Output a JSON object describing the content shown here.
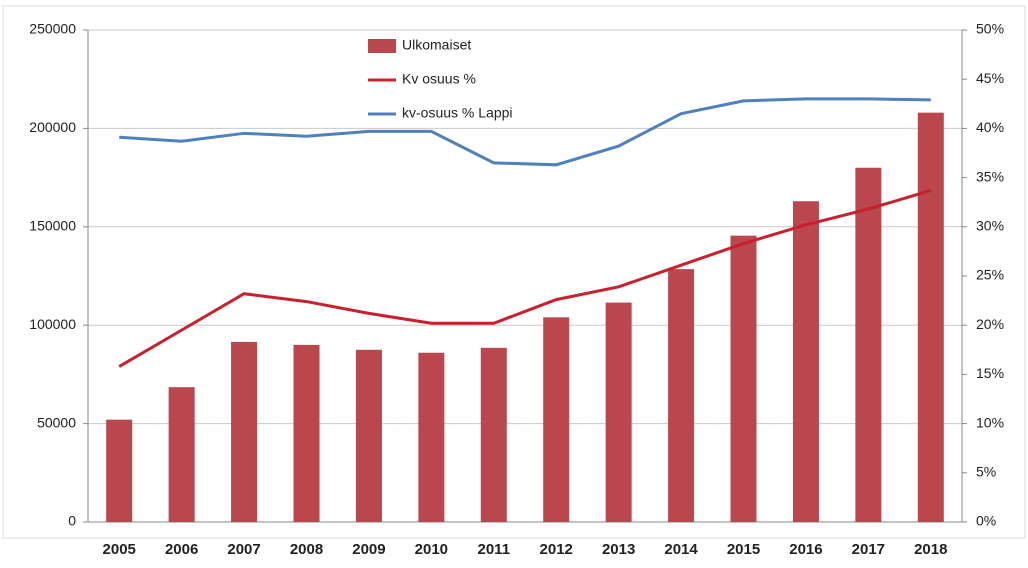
{
  "chart_data": {
    "type": "bar",
    "categories": [
      "2005",
      "2006",
      "2007",
      "2008",
      "2009",
      "2010",
      "2011",
      "2012",
      "2013",
      "2014",
      "2015",
      "2016",
      "2017",
      "2018"
    ],
    "series": [
      {
        "name": "Ulkomaiset",
        "type": "bar",
        "color": "#b9474d",
        "values": [
          52000,
          68500,
          91500,
          90000,
          87500,
          86000,
          88500,
          104000,
          111500,
          128500,
          145500,
          163000,
          180000,
          208000
        ]
      },
      {
        "name": "Kv osuus %",
        "type": "line",
        "axis": "y2",
        "color": "#c8202f",
        "values": [
          15.8,
          19.5,
          23.2,
          22.4,
          21.2,
          20.2,
          20.2,
          22.6,
          23.9,
          26.1,
          28.3,
          30.2,
          31.8,
          33.7
        ]
      },
      {
        "name": "kv-osuus % Lappi",
        "type": "line",
        "axis": "y2",
        "color": "#4f81bd",
        "values": [
          39.1,
          38.7,
          39.5,
          39.2,
          39.7,
          39.7,
          36.5,
          36.3,
          38.2,
          41.5,
          42.8,
          43.0,
          43.0,
          42.9
        ]
      }
    ],
    "ylim": [
      0,
      250000
    ],
    "yticks": [
      0,
      50000,
      100000,
      150000,
      200000,
      250000
    ],
    "y2lim": [
      0,
      50
    ],
    "y2ticks": [
      {
        "value": 0,
        "label": "0%"
      },
      {
        "value": 5,
        "label": "5%"
      },
      {
        "value": 10,
        "label": "10%"
      },
      {
        "value": 15,
        "label": "15%"
      },
      {
        "value": 20,
        "label": "20%"
      },
      {
        "value": 25,
        "label": "25%"
      },
      {
        "value": 30,
        "label": "30%"
      },
      {
        "value": 35,
        "label": "35%"
      },
      {
        "value": 40,
        "label": "40%"
      },
      {
        "value": 45,
        "label": "45%"
      },
      {
        "value": 50,
        "label": "50%"
      }
    ],
    "grid": true
  }
}
